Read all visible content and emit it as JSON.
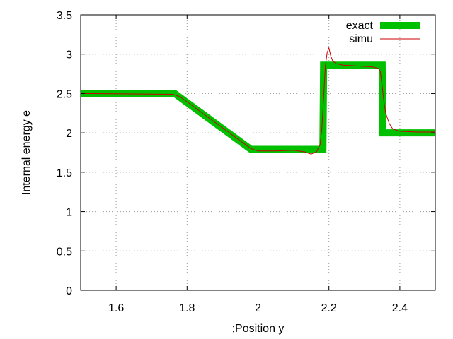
{
  "chart_data": {
    "type": "line",
    "title": "",
    "xlabel": ";Position y",
    "ylabel": "Internal energy e",
    "xlim": [
      1.5,
      2.5
    ],
    "ylim": [
      0,
      3.5
    ],
    "xticks": [
      1.6,
      1.8,
      2.0,
      2.2,
      2.4
    ],
    "xtick_labels": [
      "1.6",
      "1.8",
      "2",
      "2.2",
      "2.4"
    ],
    "yticks": [
      0,
      0.5,
      1,
      1.5,
      2,
      2.5,
      3,
      3.5
    ],
    "ytick_labels": [
      "0",
      "0.5",
      "1",
      "1.5",
      "2",
      "2.5",
      "3",
      "3.5"
    ],
    "grid": true,
    "legend_position": "top-right",
    "series": [
      {
        "name": "exact",
        "color": "#00c000",
        "style": "thick",
        "x": [
          1.5,
          1.765,
          1.98,
          2.183,
          2.185,
          2.35,
          2.352,
          2.5
        ],
        "y": [
          2.5,
          2.5,
          1.79,
          1.79,
          2.86,
          2.86,
          2.0,
          2.0
        ]
      },
      {
        "name": "simu",
        "color": "#cc0000",
        "style": "thin",
        "x": [
          1.5,
          1.76,
          1.78,
          1.98,
          2.0,
          2.05,
          2.1,
          2.13,
          2.15,
          2.165,
          2.175,
          2.18,
          2.185,
          2.19,
          2.195,
          2.2,
          2.205,
          2.21,
          2.22,
          2.24,
          2.28,
          2.32,
          2.34,
          2.345,
          2.35,
          2.355,
          2.36,
          2.37,
          2.38,
          2.4,
          2.45,
          2.5
        ],
        "y": [
          2.5,
          2.49,
          2.46,
          1.8,
          1.77,
          1.77,
          1.78,
          1.76,
          1.73,
          1.76,
          1.85,
          2.05,
          2.45,
          2.85,
          3.02,
          3.08,
          2.98,
          2.92,
          2.88,
          2.86,
          2.85,
          2.84,
          2.82,
          2.78,
          2.6,
          2.4,
          2.25,
          2.12,
          2.05,
          2.02,
          2.01,
          2.01
        ]
      }
    ]
  }
}
